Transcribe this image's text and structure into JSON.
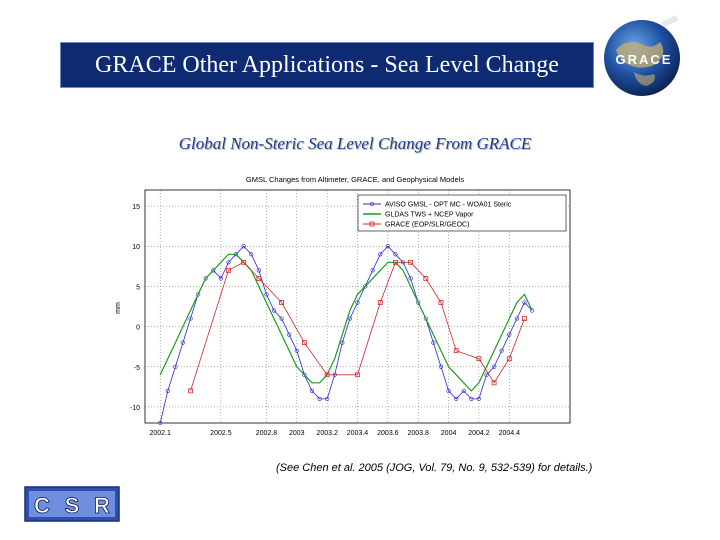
{
  "header": {
    "title": "GRACE Other Applications - Sea Level Change"
  },
  "logos": {
    "grace_text": "GRACE",
    "csr_letters": [
      "C",
      "S",
      "R"
    ]
  },
  "subtitle": "Global Non-Steric Sea Level Change From GRACE",
  "citation": "(See Chen et al. 2005 (JOG, Vol. 79, No. 9, 532-539) for details.)",
  "chart_data": {
    "type": "line",
    "title": "GMSL Changes from Altimeter, GRACE, and Geophysical Models",
    "xlabel": "",
    "ylabel": "mm",
    "xlim": [
      2002.0,
      2004.8
    ],
    "ylim": [
      -12,
      17
    ],
    "yticks": [
      -10,
      -5,
      0,
      5,
      10,
      15
    ],
    "xticks": [
      2002.1,
      2002.5,
      2002.8,
      2003.0,
      2003.2,
      2003.4,
      2003.6,
      2003.8,
      2004.0,
      2004.2,
      2004.4
    ],
    "xtick_labels": [
      "2002.1",
      "2002.5",
      "2002.8",
      "2003",
      "2003.2",
      "2003.4",
      "2003.6",
      "2003.8",
      "2004",
      "2004.2",
      "2004.4"
    ],
    "grid": true,
    "legend_position": "top-right",
    "colors": {
      "altimeter": "#2a2acf",
      "gldas": "#1f9b1f",
      "grace": "#cc2a2a"
    },
    "series": [
      {
        "name": "AVISO GMSL - OPT MC - WOA01 Steric",
        "marker": "circle",
        "x": [
          2002.1,
          2002.15,
          2002.2,
          2002.25,
          2002.3,
          2002.35,
          2002.4,
          2002.45,
          2002.5,
          2002.55,
          2002.6,
          2002.65,
          2002.7,
          2002.75,
          2002.8,
          2002.85,
          2002.9,
          2002.95,
          2003.0,
          2003.05,
          2003.1,
          2003.15,
          2003.2,
          2003.25,
          2003.3,
          2003.35,
          2003.4,
          2003.45,
          2003.5,
          2003.55,
          2003.6,
          2003.65,
          2003.7,
          2003.75,
          2003.8,
          2003.85,
          2003.9,
          2003.95,
          2004.0,
          2004.05,
          2004.1,
          2004.15,
          2004.2,
          2004.25,
          2004.3,
          2004.35,
          2004.4,
          2004.45,
          2004.5,
          2004.55
        ],
        "values": [
          -12,
          -8,
          -5,
          -2,
          1,
          4,
          6,
          7,
          6,
          8,
          9,
          10,
          9,
          7,
          4,
          2,
          1,
          -1,
          -3,
          -6,
          -8,
          -9,
          -9,
          -6,
          -2,
          1,
          3,
          5,
          7,
          9,
          10,
          9,
          8,
          6,
          3,
          1,
          -2,
          -5,
          -8,
          -9,
          -8,
          -9,
          -9,
          -6,
          -5,
          -3,
          -1,
          1,
          3,
          2
        ]
      },
      {
        "name": "GLDAS TWS + NCEP Vapor",
        "marker": "none",
        "x": [
          2002.1,
          2002.15,
          2002.2,
          2002.25,
          2002.3,
          2002.35,
          2002.4,
          2002.45,
          2002.5,
          2002.55,
          2002.6,
          2002.65,
          2002.7,
          2002.75,
          2002.8,
          2002.85,
          2002.9,
          2002.95,
          2003.0,
          2003.05,
          2003.1,
          2003.15,
          2003.2,
          2003.25,
          2003.3,
          2003.35,
          2003.4,
          2003.45,
          2003.5,
          2003.55,
          2003.6,
          2003.65,
          2003.7,
          2003.75,
          2003.8,
          2003.85,
          2003.9,
          2003.95,
          2004.0,
          2004.05,
          2004.1,
          2004.15,
          2004.2,
          2004.25,
          2004.3,
          2004.35,
          2004.4,
          2004.45,
          2004.5,
          2004.55
        ],
        "values": [
          -6,
          -4,
          -2,
          0,
          2,
          4,
          6,
          7,
          8,
          9,
          9,
          8,
          7,
          5,
          3,
          1,
          -1,
          -3,
          -5,
          -6,
          -7,
          -7,
          -6,
          -4,
          -1,
          2,
          4,
          5,
          6,
          7,
          8,
          8,
          7,
          5,
          3,
          1,
          -1,
          -3,
          -5,
          -6,
          -7,
          -8,
          -7,
          -5,
          -3,
          -1,
          1,
          3,
          4,
          2
        ]
      },
      {
        "name": "GRACE (EOP/SLR/GEOC)",
        "marker": "square",
        "x": [
          2002.3,
          2002.55,
          2002.65,
          2002.75,
          2002.9,
          2003.05,
          2003.2,
          2003.4,
          2003.55,
          2003.65,
          2003.75,
          2003.85,
          2003.95,
          2004.05,
          2004.2,
          2004.3,
          2004.4,
          2004.5
        ],
        "values": [
          -8,
          7,
          8,
          6,
          3,
          -2,
          -6,
          -6,
          3,
          8,
          8,
          6,
          3,
          -3,
          -4,
          -7,
          -4,
          1
        ]
      }
    ]
  }
}
